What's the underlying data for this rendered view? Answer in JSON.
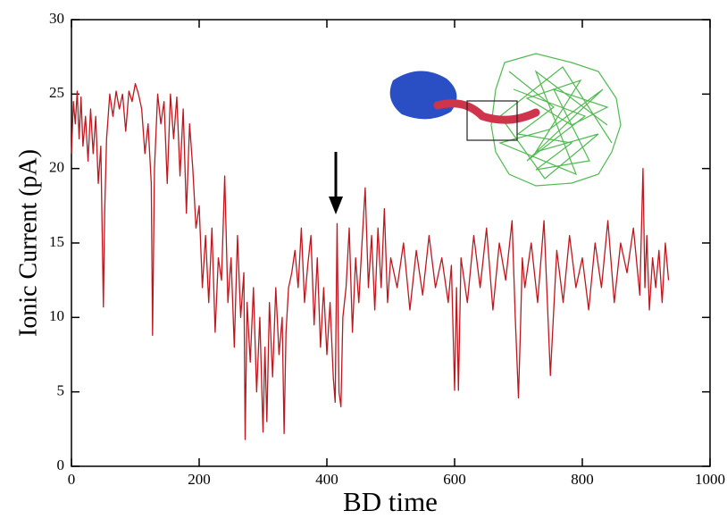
{
  "chart_data": {
    "type": "line",
    "x_label": "BD time",
    "y_label": "Ionic Current (pA)",
    "xlim": [
      0,
      1000
    ],
    "ylim": [
      0,
      30
    ],
    "xticks": [
      0,
      200,
      400,
      600,
      800,
      1000
    ],
    "yticks": [
      0,
      5,
      10,
      15,
      20,
      25,
      30
    ],
    "grid": false,
    "series": [
      {
        "color": "#c0161e",
        "x": [
          0,
          3,
          6,
          9,
          12,
          15,
          18,
          22,
          26,
          30,
          34,
          38,
          42,
          46,
          50,
          52,
          55,
          60,
          65,
          70,
          75,
          80,
          85,
          90,
          95,
          100,
          105,
          110,
          115,
          120,
          125,
          127,
          130,
          135,
          140,
          145,
          150,
          155,
          160,
          165,
          170,
          175,
          180,
          185,
          190,
          195,
          200,
          205,
          210,
          215,
          220,
          225,
          230,
          235,
          240,
          245,
          250,
          255,
          260,
          265,
          270,
          272,
          275,
          280,
          285,
          290,
          295,
          300,
          303,
          306,
          310,
          315,
          320,
          325,
          330,
          333,
          336,
          340,
          345,
          350,
          355,
          360,
          365,
          370,
          375,
          380,
          385,
          390,
          395,
          400,
          405,
          410,
          413,
          416,
          419,
          422,
          425,
          430,
          435,
          440,
          445,
          450,
          455,
          460,
          465,
          470,
          475,
          480,
          485,
          490,
          495,
          500,
          510,
          520,
          530,
          540,
          550,
          560,
          570,
          580,
          590,
          595,
          600,
          603,
          606,
          610,
          620,
          630,
          640,
          650,
          660,
          670,
          680,
          690,
          695,
          700,
          703,
          706,
          710,
          720,
          730,
          740,
          750,
          760,
          770,
          780,
          790,
          800,
          810,
          820,
          830,
          840,
          850,
          860,
          870,
          880,
          890,
          895,
          898,
          901,
          905,
          910,
          915,
          920,
          925,
          930,
          935
        ],
        "values": [
          21,
          24.5,
          23,
          25.2,
          22,
          24.8,
          21.5,
          23.5,
          20.5,
          24,
          21,
          23.5,
          19,
          21.5,
          10.7,
          17,
          22,
          25,
          23.5,
          25.2,
          24,
          25,
          22.5,
          25.2,
          24.5,
          25.7,
          25,
          24,
          21,
          23,
          19,
          8.8,
          20,
          25,
          23,
          24.5,
          19,
          25,
          22,
          24.8,
          19.5,
          24,
          17,
          23,
          20,
          16,
          17.5,
          12,
          15.5,
          11,
          16,
          9,
          14,
          12.5,
          19.5,
          11,
          14,
          8,
          15.5,
          10,
          13,
          1.8,
          11,
          7,
          12,
          5,
          10,
          2.3,
          8,
          3,
          11,
          6,
          12,
          7.5,
          10,
          2.2,
          9,
          12,
          13,
          14.5,
          12,
          16,
          11,
          13.5,
          15.5,
          9.5,
          14,
          8,
          12,
          7.5,
          11,
          6,
          4.3,
          16.3,
          5,
          4,
          10,
          12,
          16,
          9,
          14,
          11,
          15,
          18.7,
          12,
          15.5,
          10.5,
          16,
          12,
          17.3,
          11,
          14,
          12,
          15,
          10.5,
          14.5,
          11.5,
          15.5,
          12,
          14,
          11,
          13.5,
          5.1,
          12,
          5.1,
          14,
          11,
          15.5,
          12,
          16,
          10.5,
          15,
          12.5,
          16.5,
          10,
          4.6,
          9,
          14,
          12,
          15,
          11,
          16.5,
          6.1,
          14.5,
          11,
          15.5,
          12,
          14,
          10.5,
          15,
          12,
          16.5,
          11,
          15,
          13,
          16,
          11.5,
          20,
          12,
          15.5,
          10.5,
          14,
          12,
          14.5,
          11,
          15,
          12.5
        ]
      }
    ]
  }
}
